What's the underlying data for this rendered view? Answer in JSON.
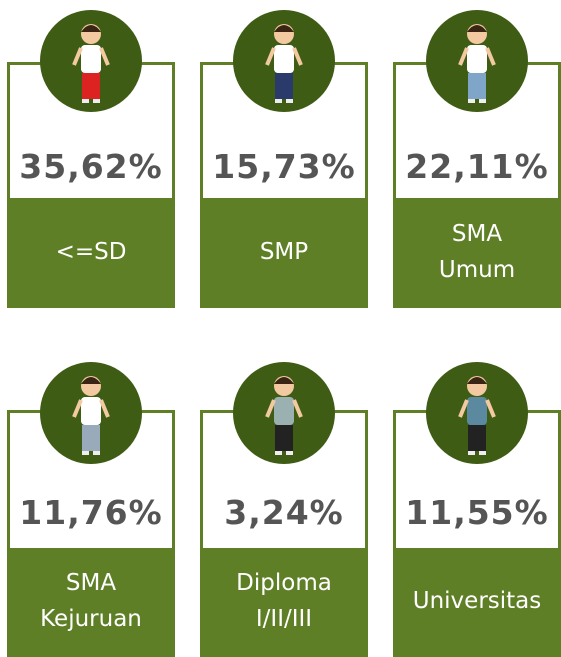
{
  "cards": [
    {
      "value": "35,62%",
      "label": [
        "<=SD"
      ]
    },
    {
      "value": "15,73%",
      "label": [
        "SMP"
      ]
    },
    {
      "value": "22,11%",
      "label": [
        "SMA",
        "Umum"
      ]
    },
    {
      "value": "11,76%",
      "label": [
        "SMA",
        "Kejuruan"
      ]
    },
    {
      "value": "3,24%",
      "label": [
        "Diploma",
        "I/II/III"
      ]
    },
    {
      "value": "11,55%",
      "label": [
        "Universitas"
      ]
    }
  ]
}
